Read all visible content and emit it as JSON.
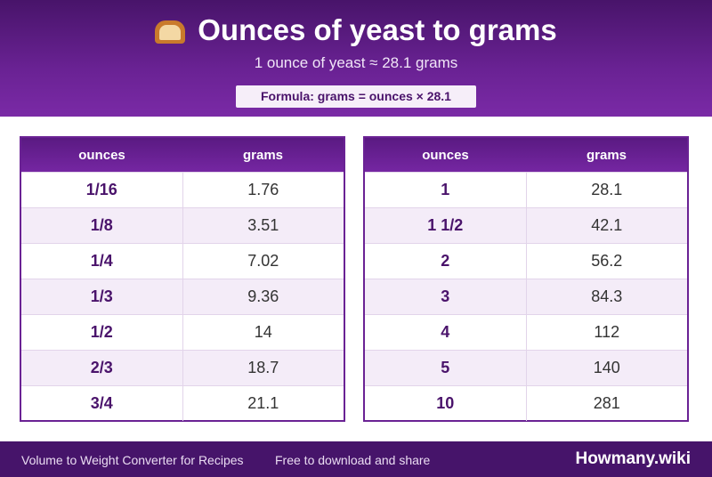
{
  "header": {
    "title": "Ounces of yeast to grams",
    "title_icon": "bread-icon",
    "subtitle": "1 ounce of yeast ≈ 28.1 grams",
    "formula": "Formula: grams = ounces × 28.1"
  },
  "tables": [
    {
      "headers": [
        "ounces",
        "grams"
      ],
      "rows": [
        [
          "1/16",
          "1.76"
        ],
        [
          "1/8",
          "3.51"
        ],
        [
          "1/4",
          "7.02"
        ],
        [
          "1/3",
          "9.36"
        ],
        [
          "1/2",
          "14"
        ],
        [
          "2/3",
          "18.7"
        ],
        [
          "3/4",
          "21.1"
        ]
      ]
    },
    {
      "headers": [
        "ounces",
        "grams"
      ],
      "rows": [
        [
          "1",
          "28.1"
        ],
        [
          "1 1/2",
          "42.1"
        ],
        [
          "2",
          "56.2"
        ],
        [
          "3",
          "84.3"
        ],
        [
          "4",
          "112"
        ],
        [
          "5",
          "140"
        ],
        [
          "10",
          "281"
        ]
      ]
    }
  ],
  "footer": {
    "left_text": "Volume to Weight Converter for Recipes",
    "middle_text": "Free to download and share",
    "brand": "Howmany.wiki"
  },
  "colors": {
    "header_purple": "#6a2294",
    "footer_purple": "#46146a",
    "ounce_text": "#4a136b"
  }
}
